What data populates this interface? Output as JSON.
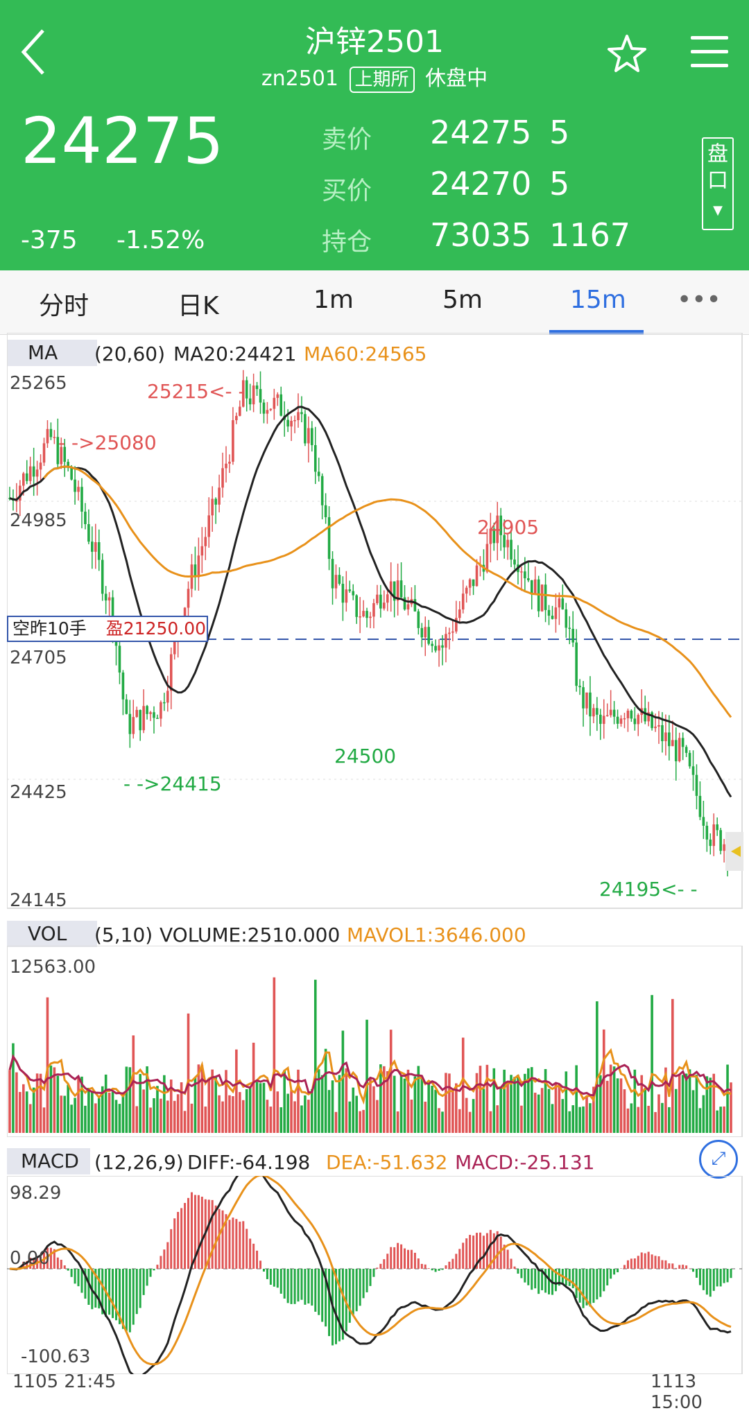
{
  "header": {
    "title": "沪锌2501",
    "code": "zn2501",
    "exchange": "上期所",
    "status": "休盘中",
    "last_price": "24275",
    "change": "-375",
    "change_pct": "-1.52%",
    "quotes": [
      {
        "label": "卖价",
        "value": "24275",
        "qty": "5"
      },
      {
        "label": "买价",
        "value": "24270",
        "qty": "5"
      },
      {
        "label": "持仓",
        "value": "73035",
        "qty": "1167"
      }
    ],
    "pankou": "盘口"
  },
  "tabs": [
    "分时",
    "日K",
    "1m",
    "5m",
    "15m",
    "•••"
  ],
  "active_tab": "15m",
  "colors": {
    "header_green": "#33bb55",
    "up": "#e05555",
    "down": "#22aa44",
    "ma60": "#e8911a",
    "accent": "#2f6fe0"
  },
  "main_chart": {
    "indicator": "MA",
    "params": "(20,60)",
    "ma20_text": "MA20:24421",
    "ma60_text": "MA60:24565",
    "y_ticks": [
      "25265",
      "24985",
      "24705",
      "24425",
      "24145"
    ],
    "annotations": {
      "high": "25215<- -",
      "left_high": "- ->25080",
      "mid_high": "24905",
      "mid_low": "24500",
      "left_low": "- ->24415",
      "low": "24195<- -"
    },
    "position_label": "空昨10手",
    "position_pnl": "盈21250.00"
  },
  "volume_chart": {
    "indicator": "VOL",
    "params": "(5,10)",
    "volume_text": "VOLUME:2510.000",
    "mavol_text": "MAVOL1:3646.000",
    "y_max": "12563.00"
  },
  "macd_chart": {
    "indicator": "MACD",
    "params": "(12,26,9)",
    "diff_text": "DIFF:-64.198",
    "dea_text": "DEA:-51.632",
    "macd_text": "MACD:-25.131",
    "y_ticks": [
      "98.29",
      "0.00",
      "-100.63"
    ]
  },
  "time_axis": {
    "start": "1105 21:45",
    "end": "1113 15:00"
  },
  "chart_data": {
    "type": "candlestick",
    "title": "沪锌2501 15m",
    "ylim": [
      24145,
      25265
    ],
    "ma20": 24421,
    "ma60": 24565,
    "high": 25215,
    "low": 24195,
    "volume": 2510,
    "mavol1": 3646,
    "macd": {
      "diff": -64.198,
      "dea": -51.632,
      "macd": -25.131,
      "ylim": [
        -100.63,
        98.29
      ]
    },
    "x_range": [
      "1105 21:45",
      "1113 15:00"
    ]
  }
}
